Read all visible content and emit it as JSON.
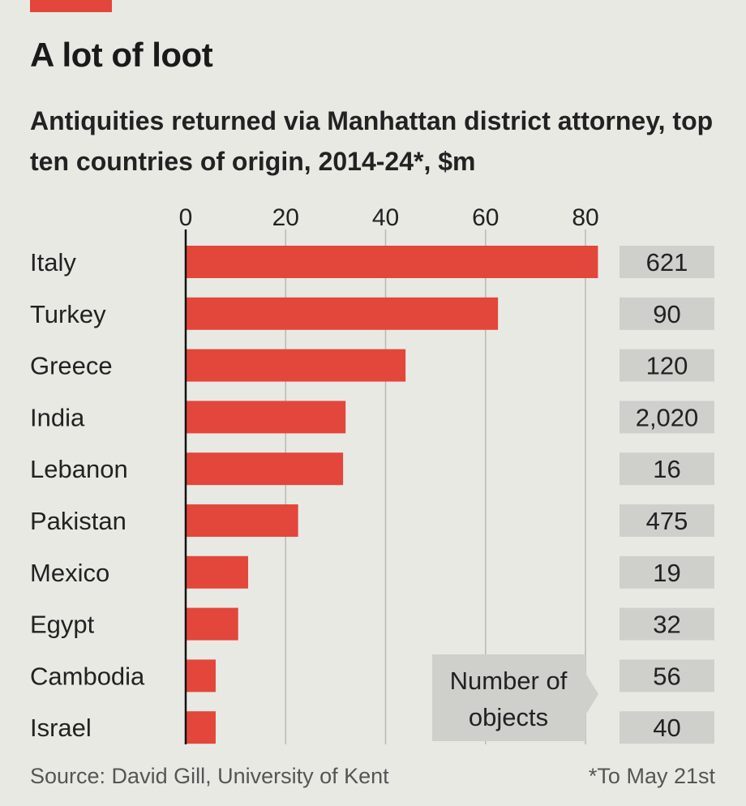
{
  "chart_data": {
    "type": "bar",
    "title": "A lot of loot",
    "subtitle": "Antiquities returned via Manhattan district attorney, top ten countries of origin, 2014-24*, $m",
    "categories": [
      "Italy",
      "Turkey",
      "Greece",
      "India",
      "Lebanon",
      "Pakistan",
      "Mexico",
      "Egypt",
      "Cambodia",
      "Israel"
    ],
    "values": [
      82.5,
      62.5,
      44,
      32,
      31.5,
      22.5,
      12.5,
      10.5,
      6,
      6
    ],
    "objects_labels": [
      "621",
      "90",
      "120",
      "2,020",
      "16",
      "475",
      "19",
      "32",
      "56",
      "40"
    ],
    "objects_caption": [
      "Number of",
      "objects"
    ],
    "xlim": [
      0,
      85
    ],
    "xticks": [
      0,
      20,
      40,
      60,
      80
    ],
    "bar_color": "#e3463b",
    "box_color": "#cfcfcc",
    "grid": true
  },
  "source": "Source: David Gill, University of Kent",
  "footnote": "*To May 21st"
}
